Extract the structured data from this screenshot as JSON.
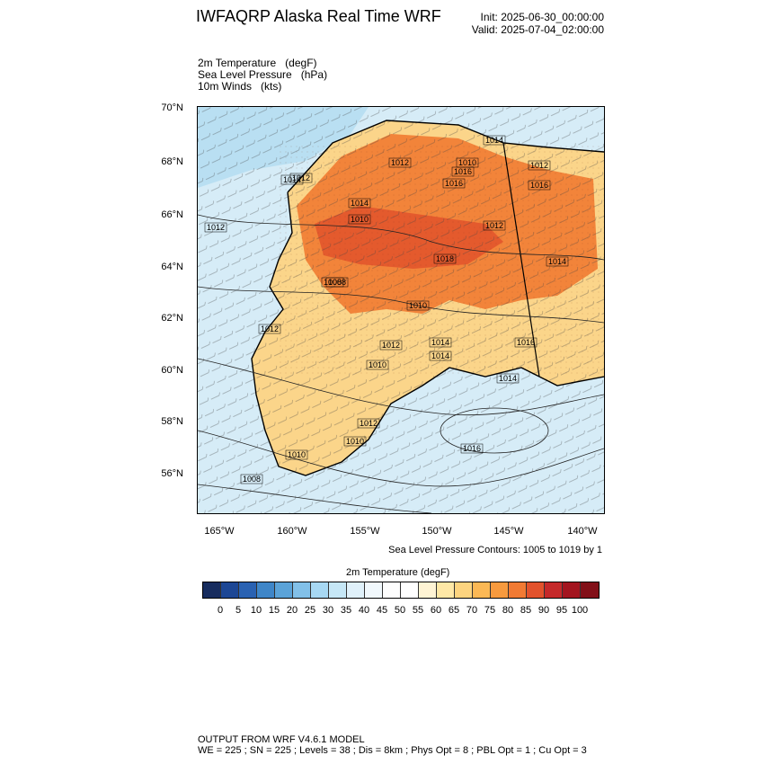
{
  "header": {
    "title": "IWFAQRP Alaska Real Time WRF",
    "init": "Init: 2025-06-30_00:00:00",
    "valid": "Valid: 2025-07-04_02:00:00"
  },
  "fields": [
    {
      "name": "2m Temperature",
      "unit": "(degF)"
    },
    {
      "name": "Sea Level Pressure",
      "unit": "(hPa)"
    },
    {
      "name": "10m Winds",
      "unit": "(kts)"
    }
  ],
  "map": {
    "lat_labels": [
      "70°N",
      "68°N",
      "66°N",
      "64°N",
      "62°N",
      "60°N",
      "58°N",
      "56°N"
    ],
    "lon_labels": [
      "165°W",
      "160°W",
      "155°W",
      "150°W",
      "145°W",
      "140°W"
    ],
    "isobar_labels": [
      "1014",
      "1012",
      "1012",
      "1010",
      "1012",
      "1014",
      "1016",
      "1016",
      "1014",
      "1016",
      "1012",
      "1010",
      "1012",
      "1018",
      "1014",
      "1008",
      "1008",
      "1010",
      "1012",
      "1012",
      "1014",
      "1010",
      "1014",
      "1016",
      "1014",
      "1012",
      "1010",
      "1010",
      "1016",
      "1008"
    ],
    "ocean_color": "#d6ecf7",
    "land_warm_color": "#f2843a",
    "land_cool_color": "#fbd58a"
  },
  "slp_note": "Sea Level Pressure Contours: 1005 to 1019 by 1",
  "colorbar": {
    "title": "2m Temperature  (degF)",
    "labels": [
      "0",
      "5",
      "10",
      "15",
      "20",
      "25",
      "30",
      "35",
      "40",
      "45",
      "50",
      "55",
      "60",
      "65",
      "70",
      "75",
      "80",
      "85",
      "90",
      "95",
      "100"
    ],
    "colors": [
      "#172c5e",
      "#1d4795",
      "#2a62b2",
      "#3f86c8",
      "#5ba3d8",
      "#82c0e8",
      "#a7d8f3",
      "#c6e7f6",
      "#e0f1fa",
      "#f1f8fc",
      "#fdfdfd",
      "#ffffff",
      "#fff4d4",
      "#ffe8a6",
      "#fdd47f",
      "#fbb855",
      "#f79a3e",
      "#f17a33",
      "#e2522c",
      "#c5292a",
      "#a3151f",
      "#821018"
    ]
  },
  "footer": {
    "line1": "OUTPUT FROM WRF V4.6.1 MODEL",
    "line2": "WE = 225 ; SN = 225 ; Levels = 38 ; Dis = 8km ; Phys Opt = 8 ; PBL Opt = 1 ; Cu Opt = 3"
  }
}
